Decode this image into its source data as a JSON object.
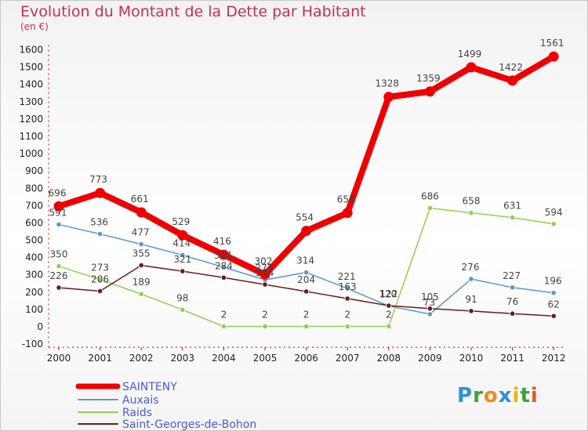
{
  "title": "Evolution du Montant de la Dette par Habitant",
  "subtitle": "(en €)",
  "logo": {
    "text": "Proxiti",
    "letters": [
      "P",
      "r",
      "o",
      "x",
      "i",
      "t",
      "i"
    ],
    "colors": [
      "#2f8fd8",
      "#3aa33a",
      "#f08a1c",
      "#2f8fd8",
      "#e8b800",
      "#3aa33a",
      "#e05a24"
    ]
  },
  "chart_data": {
    "type": "line",
    "title": "Evolution du Montant de la Dette par Habitant",
    "ylabel": "(en €)",
    "xlabel": "",
    "x": [
      "2000",
      "2001",
      "2002",
      "2003",
      "2004",
      "2005",
      "2006",
      "2007",
      "2008",
      "2009",
      "2010",
      "2011",
      "2012"
    ],
    "ylim": [
      -100,
      1600
    ],
    "yticks": [
      -100,
      0,
      100,
      200,
      300,
      400,
      500,
      600,
      700,
      800,
      900,
      1000,
      1100,
      1200,
      1300,
      1400,
      1500,
      1600
    ],
    "grid": false,
    "legend_position": "bottom-left",
    "series": [
      {
        "name": "SAINTENY",
        "color": "#ee0000",
        "width": 8,
        "values": [
          696,
          773,
          661,
          529,
          416,
          302,
          554,
          658,
          1328,
          1359,
          1499,
          1422,
          1561
        ]
      },
      {
        "name": "Auxais",
        "color": "#5b97c9",
        "width": 1.5,
        "values": [
          591,
          536,
          477,
          414,
          344,
          271,
          314,
          221,
          120,
          73,
          276,
          227,
          196
        ]
      },
      {
        "name": "Raids",
        "color": "#8fd04f",
        "width": 1.5,
        "values": [
          350,
          273,
          189,
          98,
          2,
          2,
          2,
          2,
          2,
          686,
          658,
          631,
          594
        ]
      },
      {
        "name": "Saint-Georges-de-Bohon",
        "color": "#6b1a1a",
        "width": 1.5,
        "values": [
          226,
          206,
          355,
          321,
          284,
          244,
          204,
          163,
          122,
          105,
          91,
          76,
          62
        ]
      }
    ],
    "data_labels": [
      {
        "series": 0,
        "values": [
          "696",
          "773",
          "661",
          "529",
          "416",
          "302",
          "554",
          "658",
          "1328",
          "1359",
          "1499",
          "1422",
          "1561"
        ]
      },
      {
        "series": 1,
        "values": [
          "591",
          "536",
          "477",
          "414",
          "344",
          "271",
          "314",
          "221",
          "120",
          "73",
          "276",
          "227",
          "196"
        ]
      },
      {
        "series": 2,
        "values": [
          "350",
          "273",
          "189",
          "98",
          "2",
          "2",
          "2",
          "2",
          "2",
          "686",
          "658",
          "631",
          "594"
        ]
      },
      {
        "series": 3,
        "values": [
          "226",
          "206",
          "355",
          "321",
          "284",
          "244",
          "204",
          "163",
          "122",
          "105",
          "91",
          "76",
          "62"
        ]
      }
    ]
  }
}
